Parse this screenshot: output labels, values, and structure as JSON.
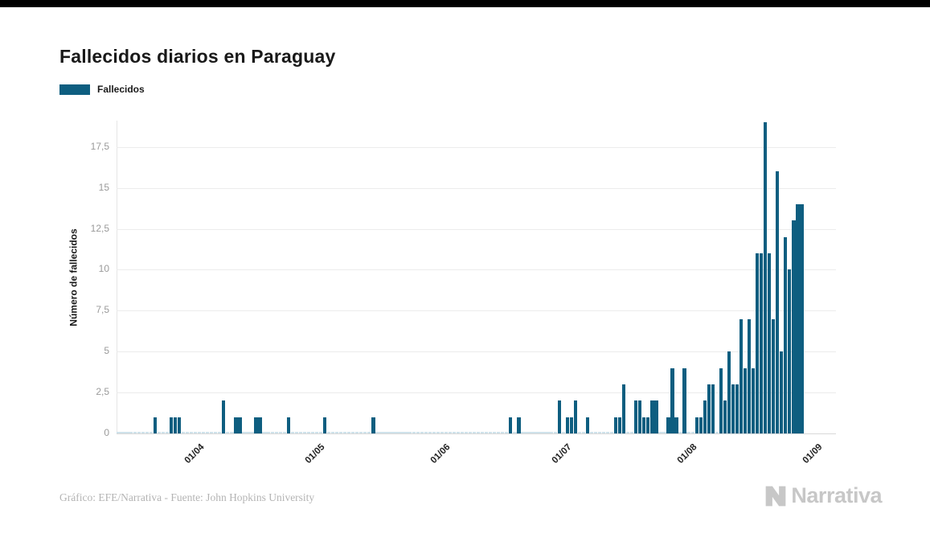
{
  "title": "Fallecidos diarios en Paraguay",
  "legend": {
    "label": "Fallecidos",
    "swatch_color": "#0e5e80"
  },
  "footer": {
    "credit": "Gráfico: EFE/Narrativa - Fuente: John Hopkins University",
    "brand": "Narrativa"
  },
  "chart_data": {
    "type": "bar",
    "title": "Fallecidos diarios en Paraguay",
    "xlabel": "",
    "ylabel": "Número de fallecidos",
    "series_name": "Fallecidos",
    "bar_color": "#0e5e80",
    "grid": "horizontal",
    "legend_position": "top-left",
    "x_ticks": [
      "01/04",
      "01/05",
      "01/06",
      "01/07",
      "01/08",
      "01/09"
    ],
    "y_ticks": [
      "0",
      "2,5",
      "5",
      "7,5",
      "10",
      "12,5",
      "15",
      "17,5"
    ],
    "y_tick_values": [
      0,
      2.5,
      5,
      7.5,
      10,
      12.5,
      15,
      17.5
    ],
    "ylim": [
      0,
      19.1
    ],
    "start_date": "12/03",
    "end_date": "28/08",
    "values_by_date": {
      "21/03": 1,
      "25/03": 1,
      "26/03": 1,
      "27/03": 1,
      "07/04": 2,
      "10/04": 1,
      "11/04": 1,
      "15/04": 1,
      "16/04": 1,
      "23/04": 1,
      "02/05": 1,
      "14/05": 1,
      "17/06": 1,
      "19/06": 1,
      "29/06": 2,
      "01/07": 1,
      "02/07": 1,
      "03/07": 2,
      "06/07": 1,
      "13/07": 1,
      "14/07": 1,
      "15/07": 3,
      "18/07": 2,
      "19/07": 2,
      "20/07": 1,
      "21/07": 1,
      "22/07": 2,
      "23/07": 2,
      "26/07": 1,
      "27/07": 4,
      "28/07": 1,
      "30/07": 4,
      "02/08": 1,
      "03/08": 1,
      "04/08": 2,
      "05/08": 3,
      "06/08": 3,
      "08/08": 4,
      "09/08": 2,
      "10/08": 5,
      "11/08": 3,
      "12/08": 3,
      "13/08": 7,
      "14/08": 4,
      "15/08": 7,
      "16/08": 4,
      "17/08": 11,
      "18/08": 11,
      "19/08": 19,
      "20/08": 11,
      "21/08": 7,
      "22/08": 16,
      "23/08": 5,
      "24/08": 12,
      "25/08": 10,
      "26/08": 13,
      "27/08": 14,
      "28/08": 14
    }
  }
}
